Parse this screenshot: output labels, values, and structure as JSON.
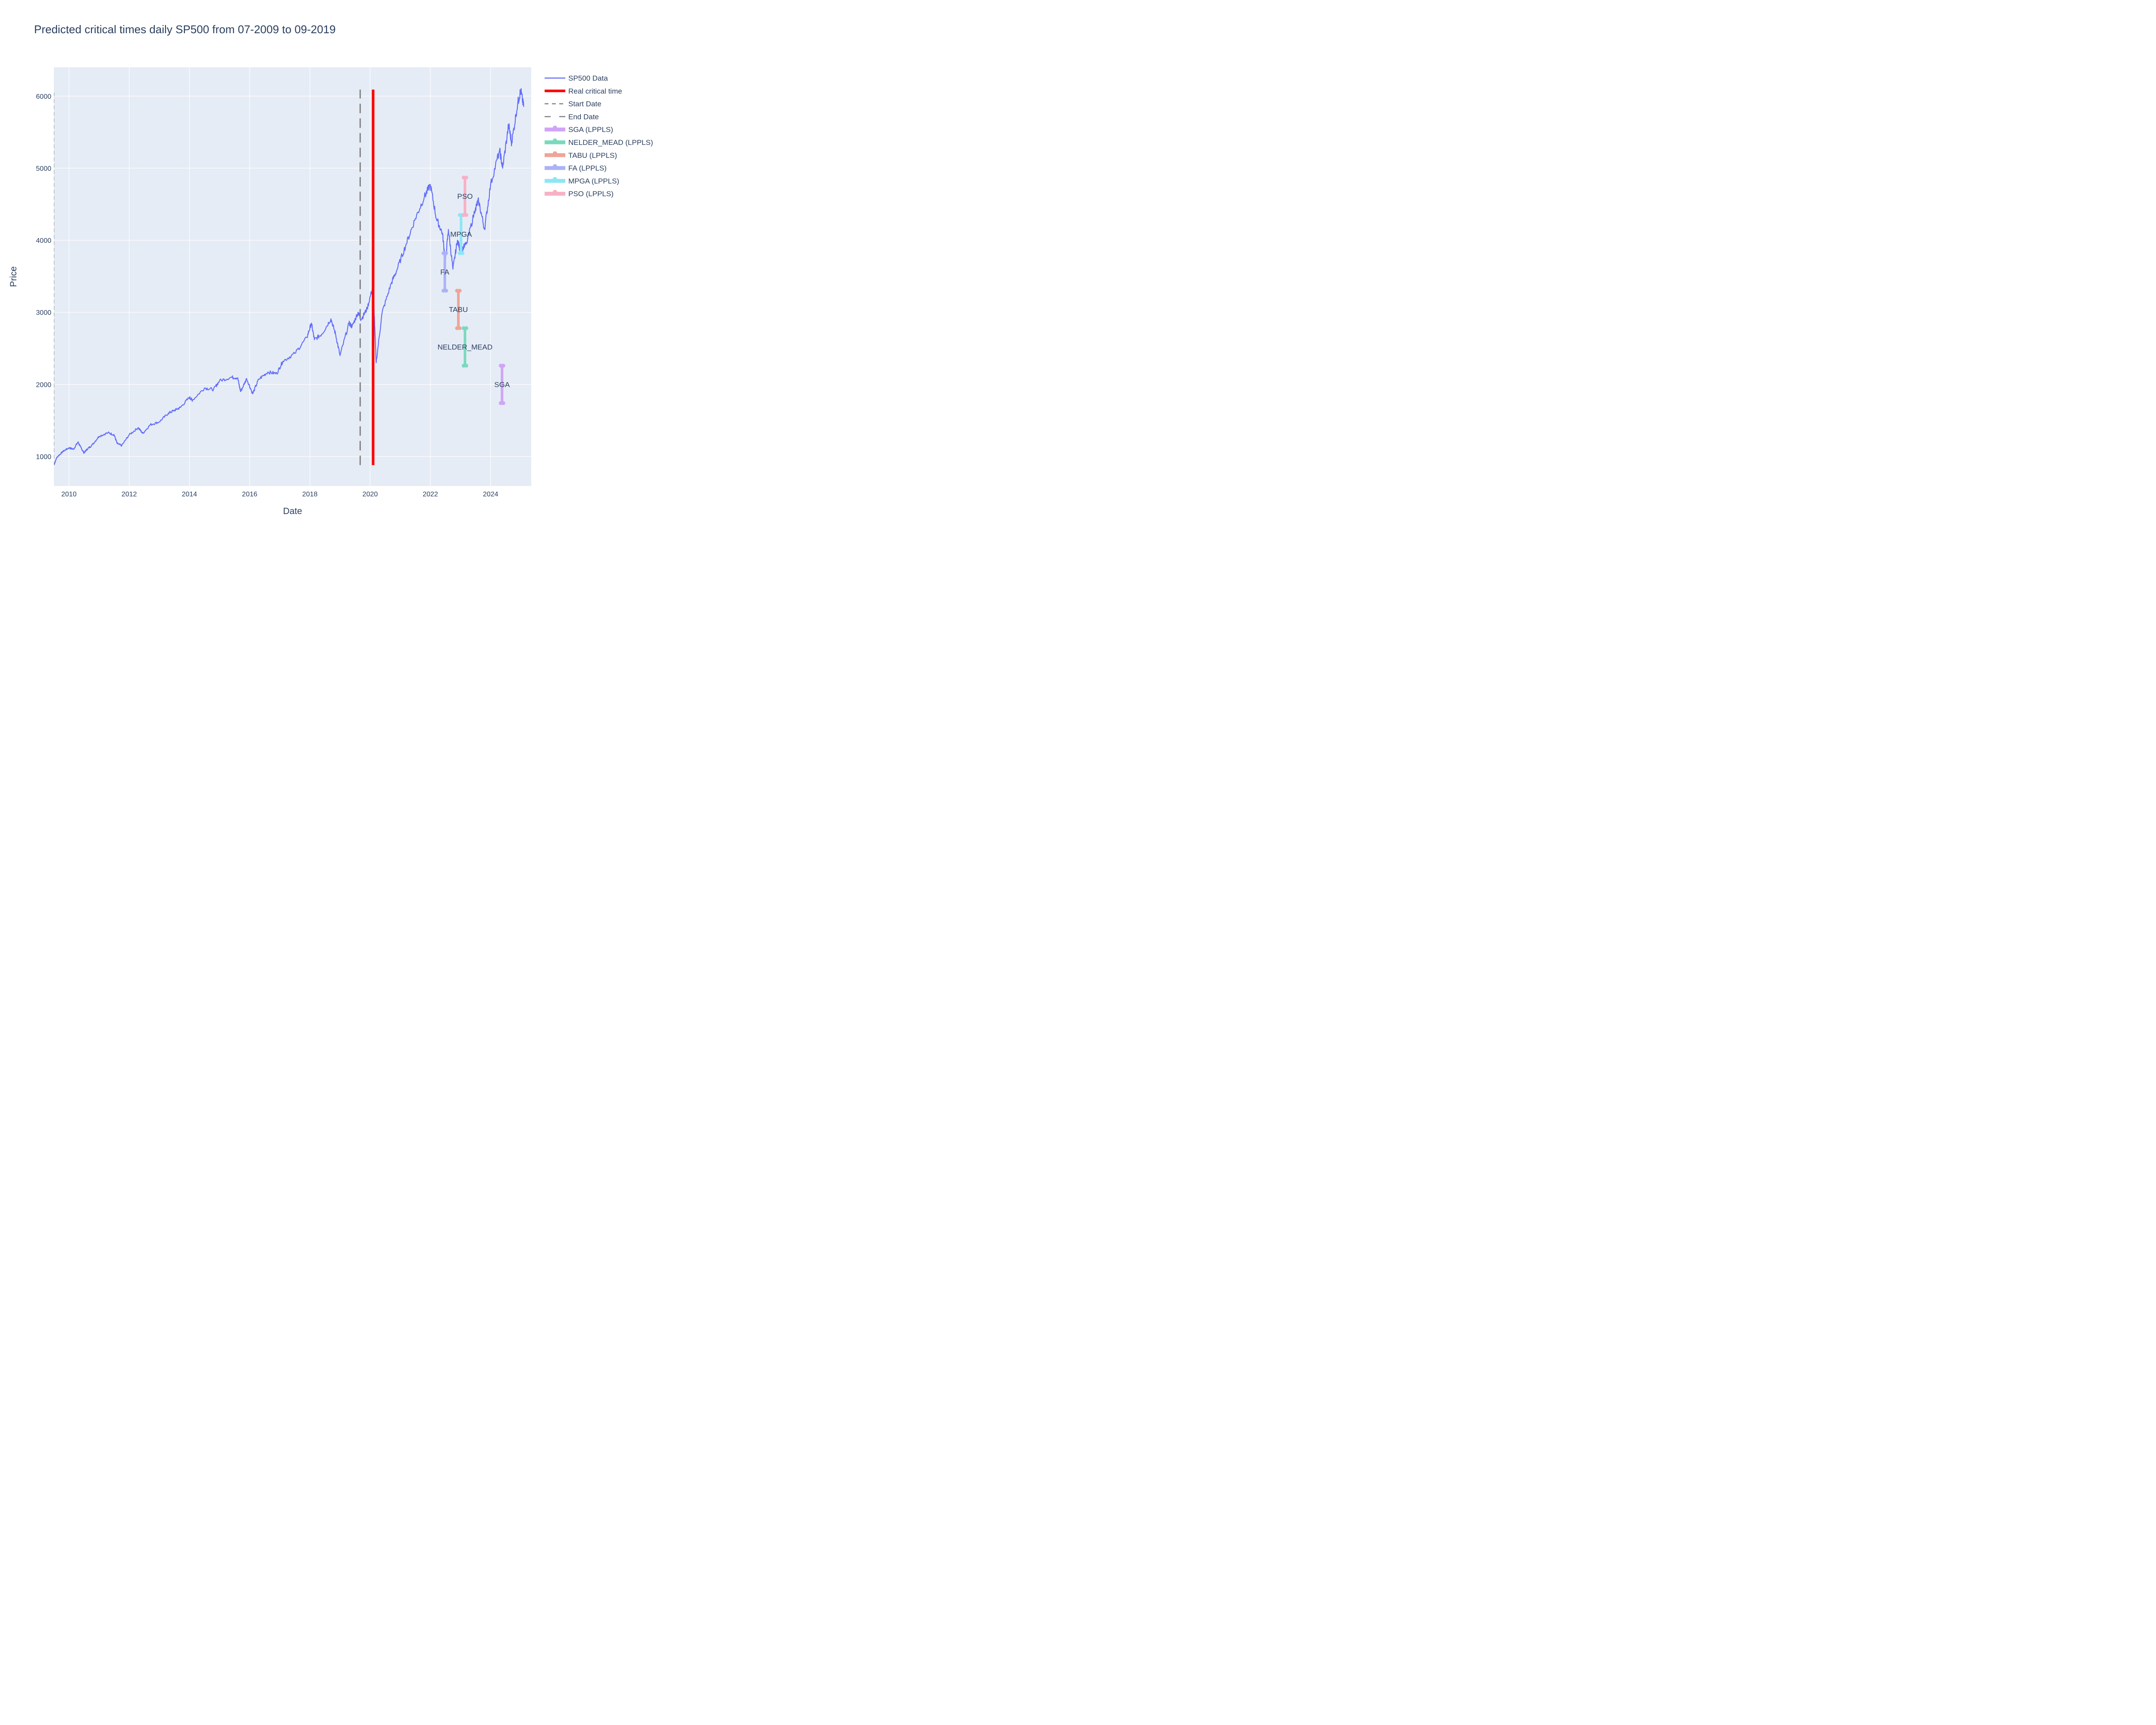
{
  "chart_data": {
    "type": "line",
    "title": "Predicted critical times daily SP500 from 07-2009 to 09-2019",
    "xlabel": "Date",
    "ylabel": "Price",
    "xlim": [
      2009.5,
      2025.35
    ],
    "ylim": [
      590,
      6400
    ],
    "x_ticks": [
      2010,
      2012,
      2014,
      2016,
      2018,
      2020,
      2022,
      2024
    ],
    "x_tick_labels": [
      "2010",
      "2012",
      "2014",
      "2016",
      "2018",
      "2020",
      "2022",
      "2024"
    ],
    "y_ticks": [
      1000,
      2000,
      3000,
      4000,
      5000,
      6000
    ],
    "y_tick_labels": [
      "1000",
      "2000",
      "3000",
      "4000",
      "5000",
      "6000"
    ],
    "grid": true,
    "legend_position": "right",
    "series": [
      {
        "name": "SP500 Data",
        "kind": "line",
        "color": "#636efa",
        "points": [
          [
            2009.5,
            880
          ],
          [
            2009.6,
            990
          ],
          [
            2009.8,
            1070
          ],
          [
            2010.0,
            1120
          ],
          [
            2010.15,
            1100
          ],
          [
            2010.3,
            1200
          ],
          [
            2010.4,
            1120
          ],
          [
            2010.5,
            1050
          ],
          [
            2010.6,
            1100
          ],
          [
            2010.75,
            1150
          ],
          [
            2011.0,
            1280
          ],
          [
            2011.3,
            1330
          ],
          [
            2011.5,
            1300
          ],
          [
            2011.6,
            1180
          ],
          [
            2011.75,
            1150
          ],
          [
            2012.0,
            1300
          ],
          [
            2012.3,
            1400
          ],
          [
            2012.45,
            1320
          ],
          [
            2012.7,
            1440
          ],
          [
            2013.0,
            1480
          ],
          [
            2013.3,
            1600
          ],
          [
            2013.5,
            1640
          ],
          [
            2013.7,
            1680
          ],
          [
            2014.0,
            1820
          ],
          [
            2014.1,
            1780
          ],
          [
            2014.5,
            1950
          ],
          [
            2014.8,
            1930
          ],
          [
            2015.0,
            2050
          ],
          [
            2015.4,
            2100
          ],
          [
            2015.6,
            2090
          ],
          [
            2015.7,
            1900
          ],
          [
            2015.9,
            2080
          ],
          [
            2016.1,
            1870
          ],
          [
            2016.3,
            2070
          ],
          [
            2016.6,
            2170
          ],
          [
            2016.9,
            2150
          ],
          [
            2017.1,
            2320
          ],
          [
            2017.5,
            2430
          ],
          [
            2017.9,
            2650
          ],
          [
            2018.05,
            2850
          ],
          [
            2018.15,
            2620
          ],
          [
            2018.4,
            2700
          ],
          [
            2018.7,
            2910
          ],
          [
            2018.85,
            2700
          ],
          [
            2019.0,
            2400
          ],
          [
            2019.3,
            2850
          ],
          [
            2019.4,
            2800
          ],
          [
            2019.6,
            3000
          ],
          [
            2019.7,
            2900
          ],
          [
            2019.9,
            3050
          ],
          [
            2020.1,
            3370
          ],
          [
            2020.2,
            2300
          ],
          [
            2020.4,
            3000
          ],
          [
            2020.7,
            3400
          ],
          [
            2020.9,
            3600
          ],
          [
            2021.2,
            3950
          ],
          [
            2021.5,
            4300
          ],
          [
            2021.8,
            4600
          ],
          [
            2022.0,
            4770
          ],
          [
            2022.2,
            4300
          ],
          [
            2022.4,
            4100
          ],
          [
            2022.5,
            3700
          ],
          [
            2022.6,
            4150
          ],
          [
            2022.75,
            3600
          ],
          [
            2022.9,
            4000
          ],
          [
            2023.0,
            3850
          ],
          [
            2023.2,
            3950
          ],
          [
            2023.5,
            4450
          ],
          [
            2023.6,
            4550
          ],
          [
            2023.8,
            4150
          ],
          [
            2024.0,
            4770
          ],
          [
            2024.3,
            5250
          ],
          [
            2024.4,
            5000
          ],
          [
            2024.6,
            5600
          ],
          [
            2024.7,
            5350
          ],
          [
            2024.9,
            5900
          ],
          [
            2025.0,
            6080
          ],
          [
            2025.1,
            5850
          ]
        ]
      },
      {
        "name": "Real critical time",
        "kind": "vline",
        "color": "#ff0000",
        "x": 2020.1,
        "y_range": [
          880,
          6090
        ]
      },
      {
        "name": "Start Date",
        "kind": "vline",
        "color": "#808080",
        "x": 2009.5,
        "y_range": [
          880,
          6090
        ]
      },
      {
        "name": "End Date",
        "kind": "vline",
        "color": "#808080",
        "x": 2019.67,
        "y_range": [
          880,
          6090
        ]
      }
    ],
    "predictions": [
      {
        "name": "SGA (LPPLS)",
        "label": "SGA",
        "color": "#d0a4f6",
        "x": 2024.38,
        "y_range": [
          1740,
          2260
        ]
      },
      {
        "name": "NELDER_MEAD (LPPLS)",
        "label": "NELDER_MEAD",
        "color": "#7ad9bd",
        "x": 2023.15,
        "y_range": [
          2260,
          2780
        ]
      },
      {
        "name": "TABU (LPPLS)",
        "label": "TABU",
        "color": "#eea597",
        "x": 2022.93,
        "y_range": [
          2780,
          3300
        ]
      },
      {
        "name": "FA (LPPLS)",
        "label": "FA",
        "color": "#adb2f7",
        "x": 2022.48,
        "y_range": [
          3300,
          3820
        ]
      },
      {
        "name": "MPGA (LPPLS)",
        "label": "MPGA",
        "color": "#8ce6f6",
        "x": 2023.02,
        "y_range": [
          3820,
          4350
        ]
      },
      {
        "name": "PSO (LPPLS)",
        "label": "PSO",
        "color": "#f8b0c6",
        "x": 2023.15,
        "y_range": [
          4350,
          4870
        ]
      }
    ]
  }
}
